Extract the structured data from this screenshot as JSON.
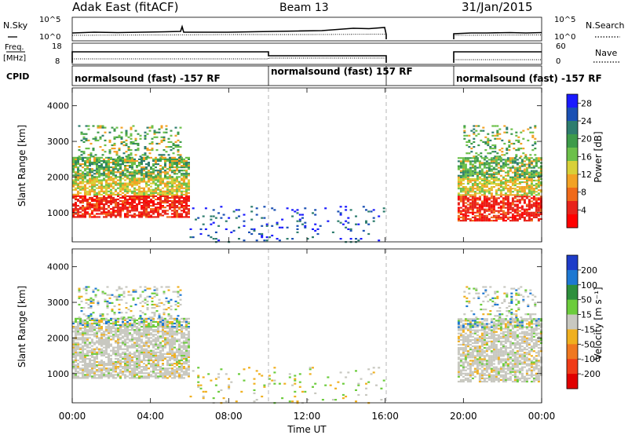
{
  "header": {
    "station": "Adak East (fitACF)",
    "beam": "Beam 13",
    "date": "31/Jan/2015"
  },
  "panels": {
    "nsky": {
      "label": "N.Sky",
      "right_label": "N.Search",
      "yticks": [
        "10^5",
        "10^0"
      ],
      "yticks_right": [
        "10^5",
        "10^0"
      ]
    },
    "freq": {
      "label": "Freq.",
      "unit": "[MHz]",
      "yticks": [
        "18",
        "8"
      ],
      "right_label": "Nave",
      "yticks_right": [
        "60",
        "0"
      ]
    },
    "cpid": {
      "label": "CPID",
      "segments": [
        {
          "text": "normalsound (fast) -157 RF",
          "start": 0,
          "end": 10
        },
        {
          "text": "normalsound (fast) 157 RF",
          "start": 10,
          "end": 16
        },
        {
          "text": "normalsound (fast) -157 RF",
          "start": 19.7,
          "end": 24
        }
      ]
    }
  },
  "chart_data": [
    {
      "type": "heatmap",
      "title": "",
      "ylabel": "Slant Range [km]",
      "xlabel": "Time UT",
      "x_range_hours": [
        0,
        24
      ],
      "ylim": [
        180,
        4500
      ],
      "yticks": [
        1000,
        2000,
        3000,
        4000
      ],
      "xticks": [
        "00:00",
        "04:00",
        "08:00",
        "12:00",
        "16:00",
        "20:00",
        "00:00"
      ],
      "colorbar": {
        "label": "Power [dB]",
        "ticks": [
          "4",
          "8",
          "12",
          "16",
          "20",
          "24",
          "28"
        ],
        "colors": [
          "#1a1aff",
          "#1a50b4",
          "#2e7d6e",
          "#3d9b4a",
          "#6cc04a",
          "#d8d038",
          "#f2a225",
          "#f06a1a",
          "#e8231a",
          "#ff0000"
        ]
      },
      "observation_gap_hours": [
        16,
        19.7
      ]
    },
    {
      "type": "heatmap",
      "title": "",
      "ylabel": "Slant Range [km]",
      "xlabel": "Time UT",
      "x_range_hours": [
        0,
        24
      ],
      "ylim": [
        180,
        4500
      ],
      "yticks": [
        1000,
        2000,
        3000,
        4000
      ],
      "xticks": [
        "00:00",
        "04:00",
        "08:00",
        "12:00",
        "16:00",
        "20:00",
        "00:00"
      ],
      "colorbar": {
        "label": "Velocity [m s⁻¹]",
        "ticks": [
          "200",
          "100",
          "50",
          "15",
          "-15",
          "-50",
          "-100",
          "-200"
        ],
        "colors": [
          "#1e3cc8",
          "#1e78d2",
          "#2d8f3c",
          "#6ccc3c",
          "#c8c8c0",
          "#f0b020",
          "#f07820",
          "#f03c18",
          "#e00000"
        ]
      },
      "observation_gap_hours": [
        16,
        19.7
      ]
    }
  ],
  "colors": {
    "gridline": "#b4b4b4",
    "line": "#000000"
  }
}
